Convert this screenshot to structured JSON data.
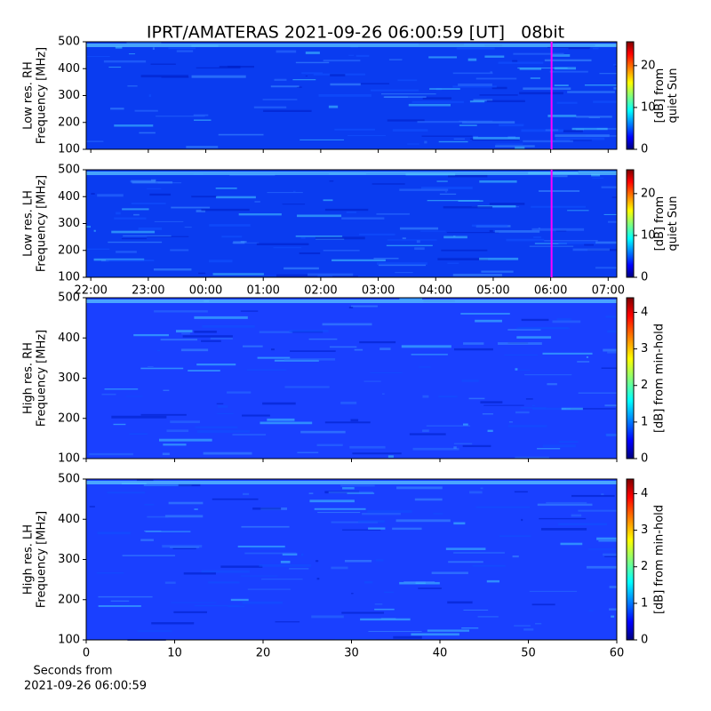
{
  "title": "IPRT/AMATERAS 2021-09-26 06:00:59 [UT]   08bit",
  "xlabel": [
    "Seconds from",
    "2021-09-26 06:00:59"
  ],
  "chart_data": [
    {
      "type": "heatmap",
      "ylabel": [
        "Low res. RH",
        "Frequency [MHz]"
      ],
      "ylim": [
        100,
        500
      ],
      "yticks": [
        100,
        200,
        300,
        400,
        500
      ],
      "xlim": [
        21.92,
        31.15
      ],
      "xticks": [
        22,
        23,
        24,
        25,
        26,
        27,
        28,
        29,
        30,
        31
      ],
      "marker_x": 30.016,
      "marker_color": "#ff00ff",
      "clim": [
        0,
        25.7
      ],
      "cticks": [
        0,
        10,
        20
      ],
      "cbar_label": [
        "[dB] from",
        "quiet Sun"
      ]
    },
    {
      "type": "heatmap",
      "ylabel": [
        "Low res. LH",
        "Frequency [MHz]"
      ],
      "ylim": [
        100,
        500
      ],
      "yticks": [
        100,
        200,
        300,
        400,
        500
      ],
      "xlim": [
        21.92,
        31.15
      ],
      "xticks": [
        {
          "value": 22,
          "label": "22:00"
        },
        {
          "value": 23,
          "label": "23:00"
        },
        {
          "value": 24,
          "label": "00:00"
        },
        {
          "value": 25,
          "label": "01:00"
        },
        {
          "value": 26,
          "label": "02:00"
        },
        {
          "value": 27,
          "label": "03:00"
        },
        {
          "value": 28,
          "label": "04:00"
        },
        {
          "value": 29,
          "label": "05:00"
        },
        {
          "value": 30,
          "label": "06:00"
        },
        {
          "value": 31,
          "label": "07:00"
        }
      ],
      "marker_x": 30.016,
      "marker_color": "#ff00ff",
      "clim": [
        0,
        25.7
      ],
      "cticks": [
        0,
        10,
        20
      ],
      "cbar_label": [
        "[dB] from",
        "quiet Sun"
      ]
    },
    {
      "type": "heatmap",
      "ylabel": [
        "High res. RH",
        "Frequency [MHz]"
      ],
      "ylim": [
        100,
        500
      ],
      "yticks": [
        100,
        200,
        300,
        400,
        500
      ],
      "xlim": [
        0,
        60
      ],
      "xticks": [
        0,
        10,
        20,
        30,
        40,
        50,
        60
      ],
      "clim": [
        0,
        4.4
      ],
      "cticks": [
        0,
        1,
        2,
        3,
        4
      ],
      "cbar_label": [
        "[dB] from min-hold"
      ]
    },
    {
      "type": "heatmap",
      "ylabel": [
        "High res. LH",
        "Frequency [MHz]"
      ],
      "ylim": [
        100,
        500
      ],
      "yticks": [
        100,
        200,
        300,
        400,
        500
      ],
      "xlim": [
        0,
        60
      ],
      "xticks": [
        0,
        10,
        20,
        30,
        40,
        50,
        60
      ],
      "clim": [
        0,
        4.4
      ],
      "cticks": [
        0,
        1,
        2,
        3,
        4
      ],
      "cbar_label": [
        "[dB] from min-hold"
      ]
    }
  ]
}
